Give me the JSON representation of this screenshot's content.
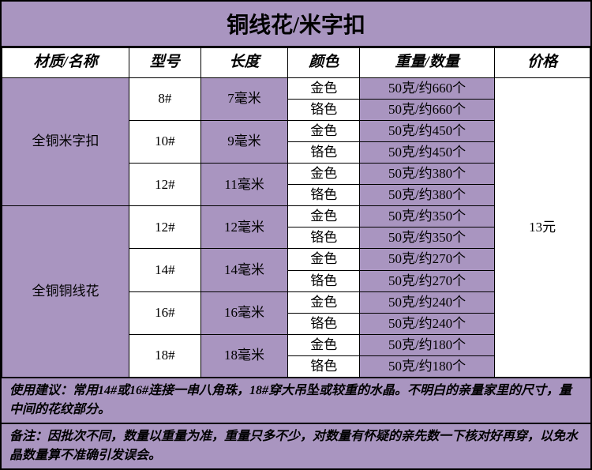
{
  "title": "铜线花/米字扣",
  "headers": {
    "material": "材质/名称",
    "model": "型号",
    "length": "长度",
    "color": "颜色",
    "weight": "重量/数量",
    "price": "价格"
  },
  "colors": {
    "bg_purple": "#a995c0",
    "bg_white": "#ffffff",
    "border": "#000000"
  },
  "groups": [
    {
      "material": "全铜米字扣",
      "specs": [
        {
          "model": "8#",
          "length": "7毫米",
          "variants": [
            {
              "color": "金色",
              "weight": "50克/约660个"
            },
            {
              "color": "铬色",
              "weight": "50克/约660个"
            }
          ]
        },
        {
          "model": "10#",
          "length": "9毫米",
          "variants": [
            {
              "color": "金色",
              "weight": "50克/约450个"
            },
            {
              "color": "铬色",
              "weight": "50克/约450个"
            }
          ]
        },
        {
          "model": "12#",
          "length": "11毫米",
          "variants": [
            {
              "color": "金色",
              "weight": "50克/约380个"
            },
            {
              "color": "铬色",
              "weight": "50克/约380个"
            }
          ]
        }
      ]
    },
    {
      "material": "全铜铜线花",
      "specs": [
        {
          "model": "12#",
          "length": "12毫米",
          "variants": [
            {
              "color": "金色",
              "weight": "50克/约350个"
            },
            {
              "color": "铬色",
              "weight": "50克/约350个"
            }
          ]
        },
        {
          "model": "14#",
          "length": "14毫米",
          "variants": [
            {
              "color": "金色",
              "weight": "50克/约270个"
            },
            {
              "color": "铬色",
              "weight": "50克/约270个"
            }
          ]
        },
        {
          "model": "16#",
          "length": "16毫米",
          "variants": [
            {
              "color": "金色",
              "weight": "50克/约240个"
            },
            {
              "color": "铬色",
              "weight": "50克/约240个"
            }
          ]
        },
        {
          "model": "18#",
          "length": "18毫米",
          "variants": [
            {
              "color": "金色",
              "weight": "50克/约180个"
            },
            {
              "color": "铬色",
              "weight": "50克/约180个"
            }
          ]
        }
      ]
    }
  ],
  "price": "13元",
  "notes": {
    "usage": "使用建议：常用14#或16#连接一串八角珠，18#穿大吊坠或较重的水晶。不明白的亲量家里的尺寸，量中间的花纹部分。",
    "remark": "备注：因批次不同，数量以重量为准，重量只多不少，对数量有怀疑的亲先数一下核对好再穿，以免水晶数量算不准确引发误会。"
  }
}
